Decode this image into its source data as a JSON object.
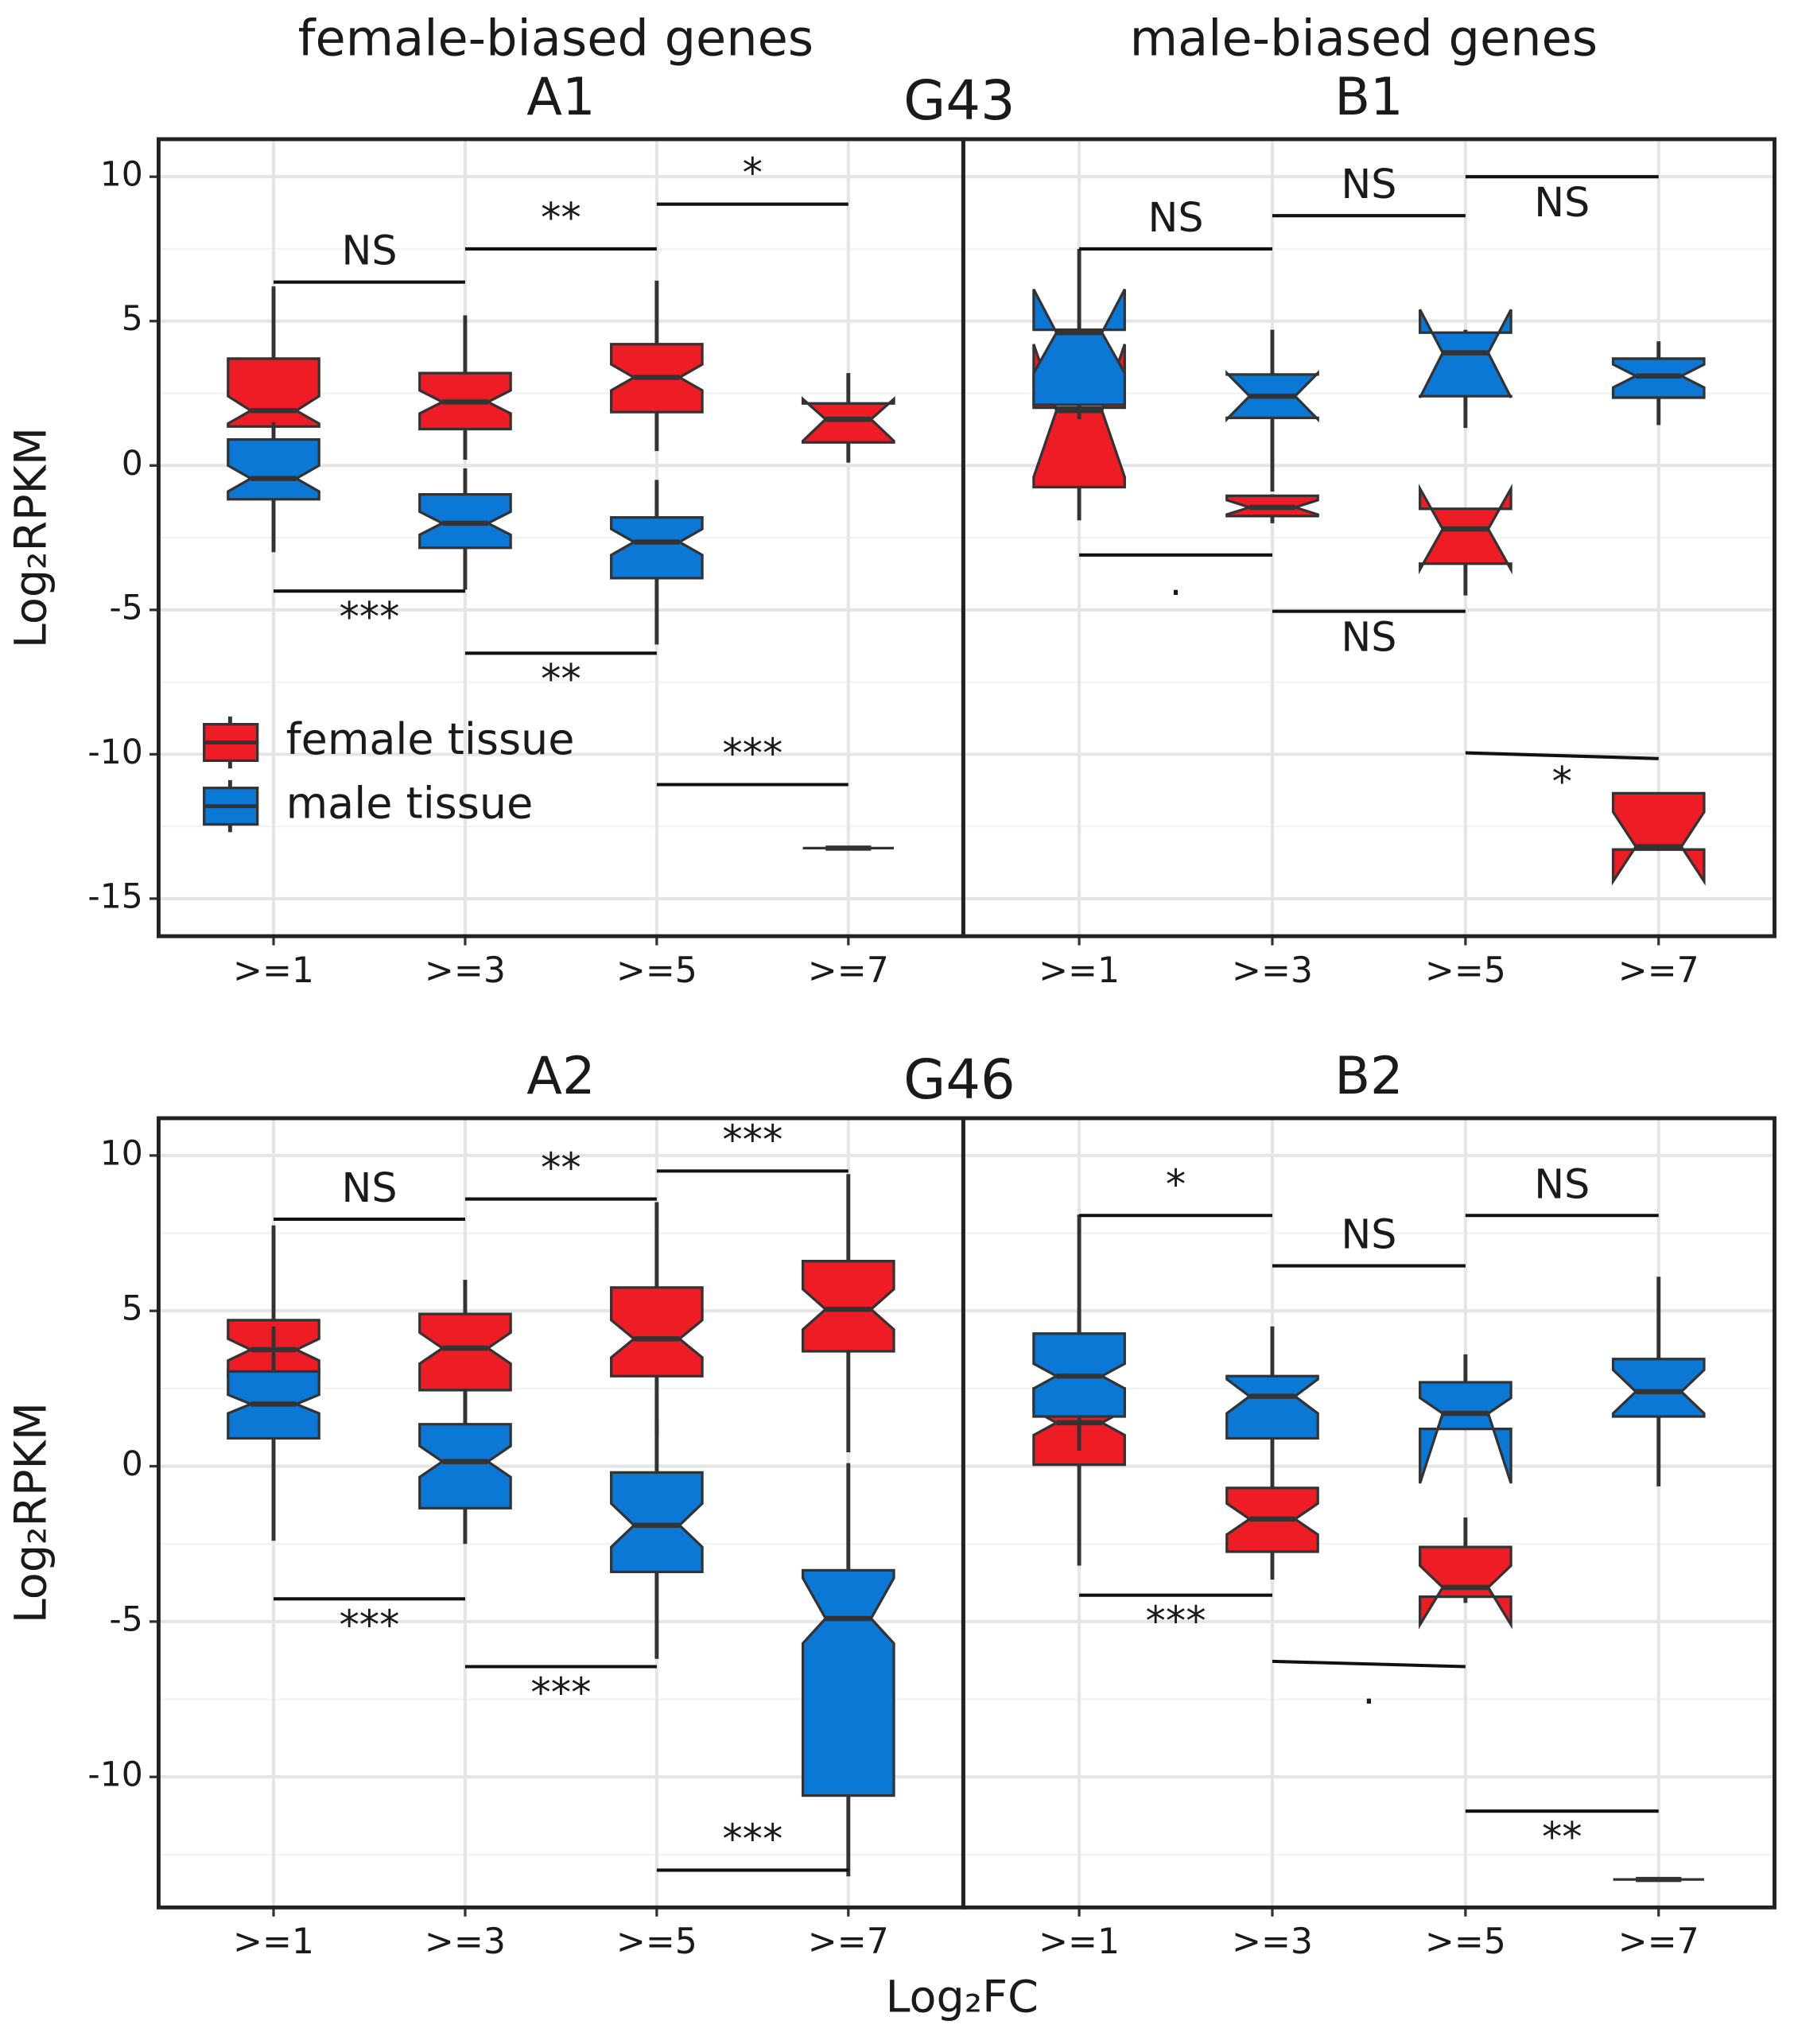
{
  "chart_data": {
    "type": "boxplot",
    "ylabel": "Log₂RPKM",
    "xlabel": "Log₂FC",
    "categories": [
      ">=1",
      ">=3",
      ">=5",
      ">=7"
    ],
    "grid": true,
    "series": [
      {
        "name": "female tissue",
        "color": "#ee1c25"
      },
      {
        "name": "male tissue",
        "color": "#0b78d6"
      }
    ],
    "rows": [
      {
        "title": "G43",
        "ylim": [
          -16.3,
          11.3
        ],
        "yticks": [
          -15,
          -10,
          -5,
          0,
          5,
          10
        ],
        "minor_yticks": [
          -12.5,
          -7.5,
          -2.5,
          2.5,
          7.5
        ],
        "panels": [
          {
            "header": "female-biased genes",
            "title": "A1",
            "legend": "bottom-left",
            "boxes": [
              [
                {
                  "whislo": 0.5,
                  "q1": 1.35,
                  "notchlo": 1.45,
                  "med": 1.9,
                  "notchhi": 2.4,
                  "q3": 3.7,
                  "whishi": 6.2
                },
                {
                  "whislo": 0.2,
                  "q1": 1.26,
                  "notchlo": 1.8,
                  "med": 2.2,
                  "notchhi": 2.6,
                  "q3": 3.2,
                  "whishi": 5.2
                },
                {
                  "whislo": 0.5,
                  "q1": 1.85,
                  "notchlo": 2.6,
                  "med": 3.05,
                  "notchhi": 3.5,
                  "q3": 4.2,
                  "whishi": 6.4
                },
                {
                  "whislo": 0.1,
                  "q1": 0.8,
                  "notchlo": 0.85,
                  "med": 1.6,
                  "notchhi": 2.3,
                  "q3": 2.15,
                  "whishi": 3.2
                }
              ],
              [
                {
                  "whislo": -3.0,
                  "q1": -1.17,
                  "notchlo": -0.9,
                  "med": -0.45,
                  "notchhi": 0.0,
                  "q3": 0.9,
                  "whishi": 1.5
                },
                {
                  "whislo": -4.3,
                  "q1": -2.85,
                  "notchlo": -2.4,
                  "med": -2.0,
                  "notchhi": -1.6,
                  "q3": -1.0,
                  "whishi": -0.1
                },
                {
                  "whislo": -6.2,
                  "q1": -3.9,
                  "notchlo": -3.1,
                  "med": -2.65,
                  "notchhi": -2.2,
                  "q3": -1.8,
                  "whishi": -0.5
                },
                {
                  "whislo": -13.25,
                  "q1": -13.25,
                  "notchlo": -13.25,
                  "med": -13.25,
                  "notchhi": -13.25,
                  "q3": -13.25,
                  "whishi": -13.25
                }
              ]
            ],
            "brackets": [
              {
                "from": 0,
                "to": 1,
                "y": [
                  6.35,
                  6.35
                ],
                "label": "NS",
                "side": "above"
              },
              {
                "from": 1,
                "to": 2,
                "y": [
                  7.5,
                  7.5
                ],
                "label": "**",
                "side": "above"
              },
              {
                "from": 2,
                "to": 3,
                "y": [
                  9.05,
                  9.05
                ],
                "label": "*",
                "side": "above"
              },
              {
                "from": 0,
                "to": 1,
                "y": [
                  -4.35,
                  -4.35
                ],
                "label": "***",
                "side": "below"
              },
              {
                "from": 1,
                "to": 2,
                "y": [
                  -6.5,
                  -6.5
                ],
                "label": "**",
                "side": "below"
              },
              {
                "from": 2,
                "to": 3,
                "y": [
                  -11.05,
                  -11.05
                ],
                "label": "***",
                "side": "above"
              }
            ]
          },
          {
            "header": "male-biased genes",
            "title": "B1",
            "boxes": [
              [
                {
                  "whislo": -1.9,
                  "q1": -0.75,
                  "notchlo": -0.4,
                  "med": 1.9,
                  "notchhi": 4.2,
                  "q3": 2.0,
                  "whishi": 4.5
                },
                {
                  "whislo": -2.0,
                  "q1": -1.75,
                  "notchlo": -1.7,
                  "med": -1.45,
                  "notchhi": -1.2,
                  "q3": -1.05,
                  "whishi": -1.0
                },
                {
                  "whislo": -4.5,
                  "q1": -3.4,
                  "notchlo": -3.6,
                  "med": -2.2,
                  "notchhi": -0.8,
                  "q3": -1.5,
                  "whishi": -1.5
                },
                {
                  "whislo": -13.3,
                  "q1": -13.3,
                  "notchlo": -14.4,
                  "med": -13.2,
                  "notchhi": -12.0,
                  "q3": -11.35,
                  "whishi": -11.35
                }
              ],
              [
                {
                  "whislo": 1.6,
                  "q1": 2.1,
                  "notchlo": 3.2,
                  "med": 4.6,
                  "notchhi": 6.1,
                  "q3": 4.7,
                  "whishi": 7.5
                },
                {
                  "whislo": -0.9,
                  "q1": 1.65,
                  "notchlo": 1.6,
                  "med": 2.4,
                  "notchhi": 3.2,
                  "q3": 3.15,
                  "whishi": 4.7
                },
                {
                  "whislo": 1.3,
                  "q1": 2.4,
                  "notchlo": 2.35,
                  "med": 3.9,
                  "notchhi": 5.4,
                  "q3": 4.6,
                  "whishi": 4.7
                },
                {
                  "whislo": 1.4,
                  "q1": 2.35,
                  "notchlo": 2.7,
                  "med": 3.1,
                  "notchhi": 3.5,
                  "q3": 3.7,
                  "whishi": 4.3
                }
              ]
            ],
            "brackets": [
              {
                "from": 0,
                "to": 1,
                "y": [
                  7.5,
                  7.5
                ],
                "label": "NS",
                "side": "above"
              },
              {
                "from": 1,
                "to": 2,
                "y": [
                  8.65,
                  8.65
                ],
                "label": "NS",
                "side": "above"
              },
              {
                "from": 2,
                "to": 3,
                "y": [
                  10.0,
                  10.0
                ],
                "label": "NS",
                "side": "below"
              },
              {
                "from": 0,
                "to": 1,
                "y": [
                  -3.1,
                  -3.1
                ],
                "label": ".",
                "side": "below"
              },
              {
                "from": 1,
                "to": 2,
                "y": [
                  -5.05,
                  -5.05
                ],
                "label": "NS",
                "side": "below"
              },
              {
                "from": 2,
                "to": 3,
                "y": [
                  -9.95,
                  -10.15
                ],
                "label": "*",
                "side": "below"
              }
            ]
          }
        ]
      },
      {
        "title": "G46",
        "ylim": [
          -14.2,
          11.2
        ],
        "yticks": [
          -10,
          -5,
          0,
          5,
          10
        ],
        "minor_yticks": [
          -12.5,
          -7.5,
          -2.5,
          2.5,
          7.5
        ],
        "panels": [
          {
            "title": "A2",
            "boxes": [
              [
                {
                  "whislo": 1.5,
                  "q1": 2.9,
                  "notchlo": 3.4,
                  "med": 3.75,
                  "notchhi": 4.1,
                  "q3": 4.7,
                  "whishi": 7.75
                },
                {
                  "whislo": 1.5,
                  "q1": 2.45,
                  "notchlo": 3.3,
                  "med": 3.8,
                  "notchhi": 4.3,
                  "q3": 4.9,
                  "whishi": 6.0
                },
                {
                  "whislo": 1.0,
                  "q1": 2.9,
                  "notchlo": 3.5,
                  "med": 4.1,
                  "notchhi": 4.7,
                  "q3": 5.75,
                  "whishi": 8.5
                },
                {
                  "whislo": 0.45,
                  "q1": 3.7,
                  "notchlo": 4.4,
                  "med": 5.05,
                  "notchhi": 5.7,
                  "q3": 6.6,
                  "whishi": 9.4
                }
              ],
              [
                {
                  "whislo": -2.4,
                  "q1": 0.9,
                  "notchlo": 1.7,
                  "med": 2.0,
                  "notchhi": 2.3,
                  "q3": 3.05,
                  "whishi": 4.5
                },
                {
                  "whislo": -2.5,
                  "q1": -1.35,
                  "notchlo": -0.35,
                  "med": 0.15,
                  "notchhi": 0.65,
                  "q3": 1.35,
                  "whishi": 2.5
                },
                {
                  "whislo": -6.2,
                  "q1": -3.4,
                  "notchlo": -2.6,
                  "med": -1.9,
                  "notchhi": -1.2,
                  "q3": -0.2,
                  "whishi": 1.5
                },
                {
                  "whislo": -13.2,
                  "q1": -10.6,
                  "notchlo": -5.7,
                  "med": -4.9,
                  "notchhi": -3.6,
                  "q3": -3.35,
                  "whishi": 0.1
                }
              ]
            ],
            "brackets": [
              {
                "from": 0,
                "to": 1,
                "y": [
                  7.95,
                  7.95
                ],
                "label": "NS",
                "side": "above"
              },
              {
                "from": 1,
                "to": 2,
                "y": [
                  8.6,
                  8.6
                ],
                "label": "**",
                "side": "above"
              },
              {
                "from": 2,
                "to": 3,
                "y": [
                  9.5,
                  9.5
                ],
                "label": "***",
                "side": "above"
              },
              {
                "from": 0,
                "to": 1,
                "y": [
                  -4.27,
                  -4.27
                ],
                "label": "***",
                "side": "below"
              },
              {
                "from": 1,
                "to": 2,
                "y": [
                  -6.45,
                  -6.45
                ],
                "label": "***",
                "side": "below"
              },
              {
                "from": 2,
                "to": 3,
                "y": [
                  -13.0,
                  -13.0
                ],
                "label": "***",
                "side": "above"
              }
            ]
          },
          {
            "title": "B2",
            "boxes": [
              [
                {
                  "whislo": -3.2,
                  "q1": 0.05,
                  "notchlo": 1.0,
                  "med": 1.4,
                  "notchhi": 1.8,
                  "q3": 2.5,
                  "whishi": 5.0
                },
                {
                  "whislo": -3.65,
                  "q1": -2.75,
                  "notchlo": -2.2,
                  "med": -1.7,
                  "notchhi": -1.2,
                  "q3": -0.7,
                  "whishi": 0.0
                },
                {
                  "whislo": -4.4,
                  "q1": -4.2,
                  "notchlo": -5.1,
                  "med": -3.9,
                  "notchhi": -3.2,
                  "q3": -2.6,
                  "whishi": -1.65
                },
                {
                  "whislo": -13.3,
                  "q1": -13.3,
                  "notchlo": -13.3,
                  "med": -13.3,
                  "notchhi": -13.3,
                  "q3": -13.3,
                  "whishi": -13.3
                }
              ],
              [
                {
                  "whislo": 0.5,
                  "q1": 1.6,
                  "notchlo": 2.5,
                  "med": 2.9,
                  "notchhi": 3.3,
                  "q3": 4.27,
                  "whishi": 8.1
                },
                {
                  "whislo": 0.0,
                  "q1": 0.9,
                  "notchlo": 1.7,
                  "med": 2.25,
                  "notchhi": 2.8,
                  "q3": 2.9,
                  "whishi": 4.5
                },
                {
                  "whislo": 1.2,
                  "q1": 1.2,
                  "notchlo": -0.55,
                  "med": 1.7,
                  "notchhi": 2.2,
                  "q3": 2.7,
                  "whishi": 3.6
                },
                {
                  "whislo": -0.65,
                  "q1": 1.6,
                  "notchlo": 1.7,
                  "med": 2.4,
                  "notchhi": 3.1,
                  "q3": 3.45,
                  "whishi": 6.1
                }
              ]
            ],
            "brackets": [
              {
                "from": 0,
                "to": 1,
                "y": [
                  8.07,
                  8.07
                ],
                "label": "*",
                "side": "above"
              },
              {
                "from": 1,
                "to": 2,
                "y": [
                  6.45,
                  6.45
                ],
                "label": "NS",
                "side": "above"
              },
              {
                "from": 2,
                "to": 3,
                "y": [
                  8.07,
                  8.07
                ],
                "label": "NS",
                "side": "above"
              },
              {
                "from": 0,
                "to": 1,
                "y": [
                  -4.15,
                  -4.15
                ],
                "label": "***",
                "side": "below"
              },
              {
                "from": 1,
                "to": 2,
                "y": [
                  -6.28,
                  -6.45
                ],
                "label": ".",
                "side": "below"
              },
              {
                "from": 2,
                "to": 3,
                "y": [
                  -11.1,
                  -11.1
                ],
                "label": "**",
                "side": "below"
              }
            ]
          }
        ]
      }
    ]
  }
}
